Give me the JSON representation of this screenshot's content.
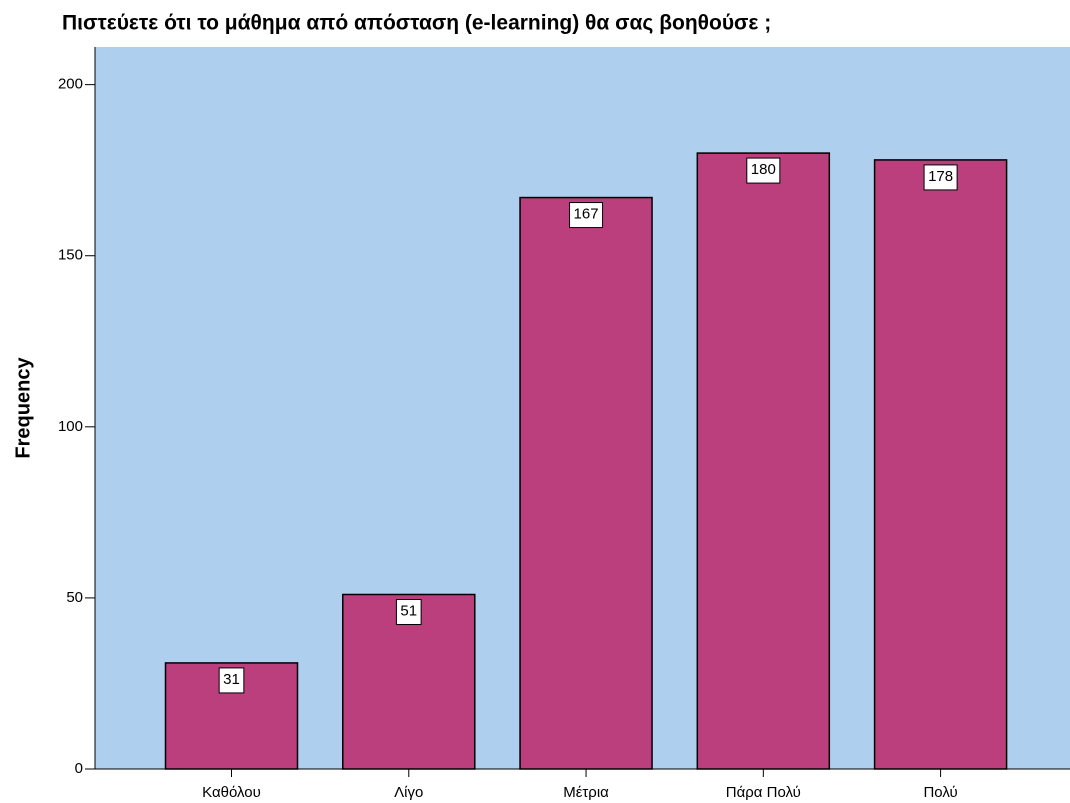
{
  "chart_data": {
    "type": "bar",
    "title": "Πιστεύετε ότι το μάθημα από απόσταση (e-learning) θα σας βοηθούσε ;",
    "y_label": "Frequency",
    "categories": [
      "Καθόλου",
      "Λίγο",
      "Μέτρια",
      "Πάρα Πολύ",
      "Πολύ"
    ],
    "values": [
      31,
      51,
      167,
      180,
      178
    ],
    "color": "#bc3f7d",
    "background": "#aecfee",
    "ylim": [
      0,
      211
    ],
    "yticks": [
      0,
      50,
      100,
      150,
      200
    ],
    "grid": false
  }
}
